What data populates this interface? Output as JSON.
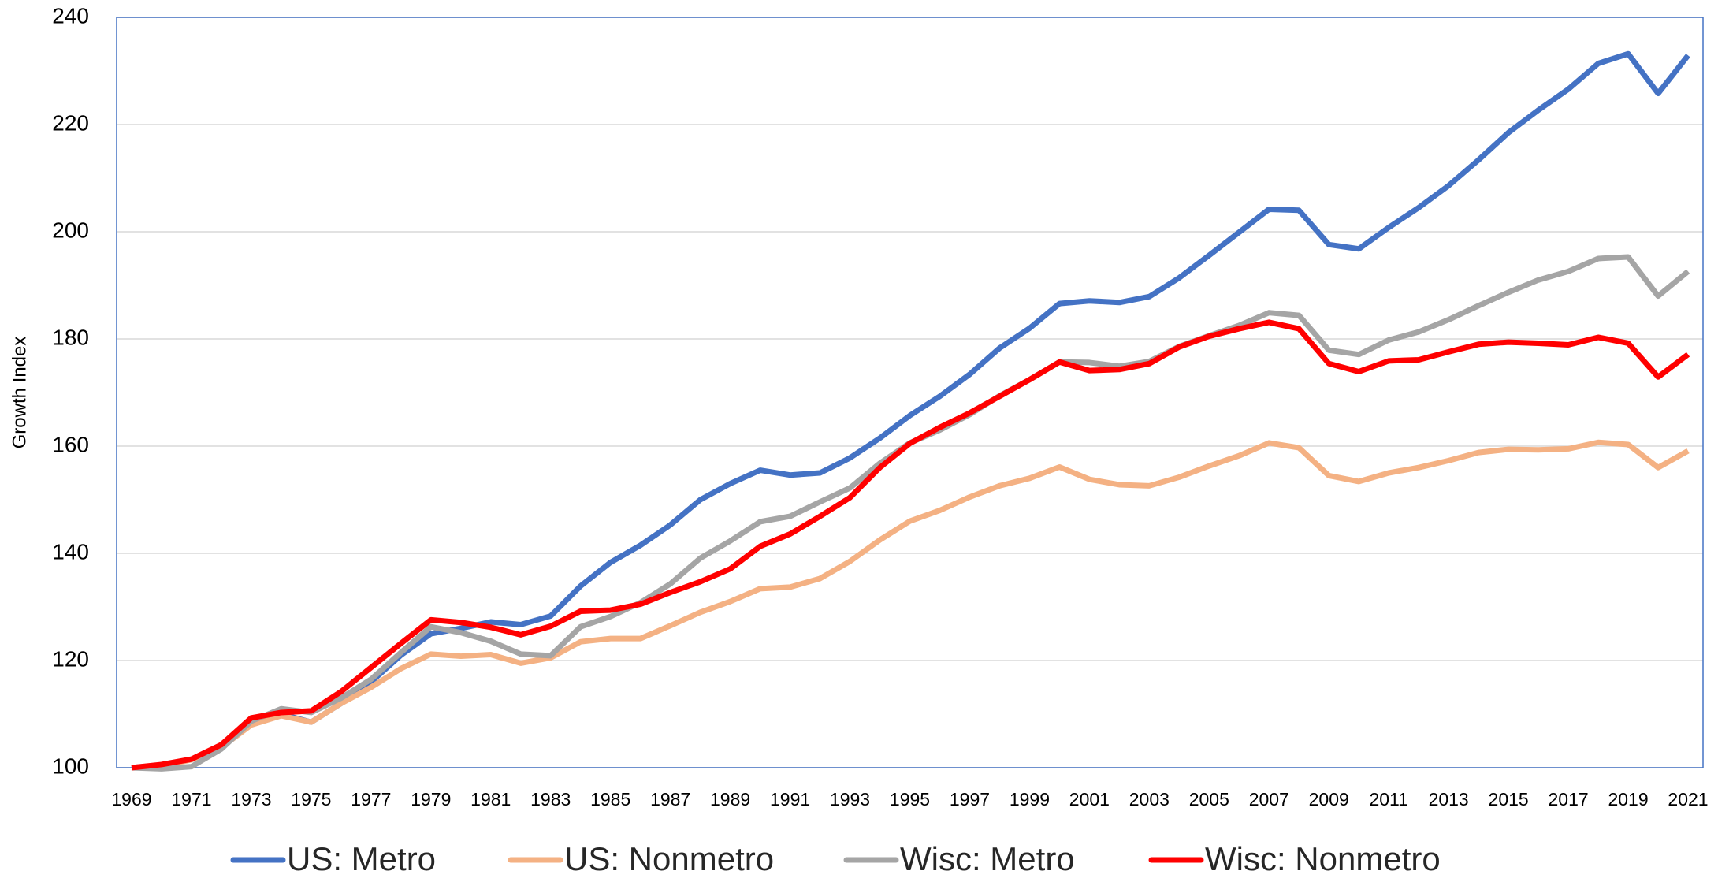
{
  "chart_data": {
    "type": "line",
    "y_label": "Growth Index",
    "x": [
      1969,
      1970,
      1971,
      1972,
      1973,
      1974,
      1975,
      1976,
      1977,
      1978,
      1979,
      1980,
      1981,
      1982,
      1983,
      1984,
      1985,
      1986,
      1987,
      1988,
      1989,
      1990,
      1991,
      1992,
      1993,
      1994,
      1995,
      1996,
      1997,
      1998,
      1999,
      2000,
      2001,
      2002,
      2003,
      2004,
      2005,
      2006,
      2007,
      2008,
      2009,
      2010,
      2011,
      2012,
      2013,
      2014,
      2015,
      2016,
      2017,
      2018,
      2019,
      2020,
      2021
    ],
    "xlim": [
      1968.5,
      2021.5
    ],
    "xticks": [
      1969,
      1971,
      1973,
      1975,
      1977,
      1979,
      1981,
      1983,
      1985,
      1987,
      1989,
      1991,
      1993,
      1995,
      1997,
      1999,
      2001,
      2003,
      2005,
      2007,
      2009,
      2011,
      2013,
      2015,
      2017,
      2019,
      2021
    ],
    "ylim": [
      100,
      240
    ],
    "yticks": [
      100,
      120,
      140,
      160,
      180,
      200,
      220,
      240
    ],
    "grid": true,
    "series": [
      {
        "name": "US: Metro",
        "color": "#4472c4",
        "values": [
          100,
          100.5,
          101.5,
          104,
          109,
          110,
          108.5,
          112,
          116,
          121,
          125,
          126,
          127.2,
          126.7,
          128.3,
          133.9,
          138.3,
          141.5,
          145.3,
          150,
          153,
          155.5,
          154.6,
          155,
          157.8,
          161.5,
          165.7,
          169.3,
          173.4,
          178.3,
          182,
          186.6,
          187.1,
          186.8,
          187.9,
          191.4,
          195.6,
          199.9,
          204.2,
          204,
          197.6,
          196.8,
          200.8,
          204.5,
          208.6,
          213.4,
          218.5,
          222.7,
          226.6,
          231.4,
          233.2,
          225.8,
          232.9
        ]
      },
      {
        "name": "US: Nonmetro",
        "color": "#f4b183",
        "values": [
          100,
          100.3,
          101.5,
          103.8,
          108,
          109.7,
          108.5,
          112,
          115,
          118.5,
          121.2,
          120.8,
          121.1,
          119.5,
          120.5,
          123.5,
          124.1,
          124.1,
          126.5,
          129,
          131,
          133.4,
          133.7,
          135.3,
          138.5,
          142.5,
          146,
          148,
          150.5,
          152.6,
          154,
          156.1,
          153.8,
          152.8,
          152.6,
          154.2,
          156.3,
          158.2,
          160.6,
          159.7,
          154.5,
          153.4,
          155,
          156,
          157.3,
          158.8,
          159.4,
          159.3,
          159.5,
          160.7,
          160.3,
          156,
          159.1
        ]
      },
      {
        "name": "Wisc: Metro",
        "color": "#a5a5a5",
        "values": [
          100,
          99.8,
          100.2,
          103.5,
          108.7,
          111,
          110.3,
          113,
          116.5,
          121.5,
          126.3,
          125.2,
          123.6,
          121.2,
          120.9,
          126.3,
          128.2,
          130.8,
          134.3,
          139.1,
          142.3,
          145.9,
          146.9,
          149.6,
          152.2,
          156.8,
          160.6,
          163,
          165.9,
          169.4,
          172.4,
          175.7,
          175.6,
          174.9,
          175.8,
          178.6,
          180.6,
          182.5,
          184.9,
          184.4,
          177.9,
          177.1,
          179.8,
          181.3,
          183.6,
          186.2,
          188.7,
          191,
          192.6,
          195,
          195.3,
          188,
          192.6
        ]
      },
      {
        "name": "Wisc: Nonmetro",
        "color": "#ff0000",
        "values": [
          100,
          100.6,
          101.6,
          104.3,
          109.3,
          110.3,
          110.6,
          114.2,
          118.7,
          123.2,
          127.6,
          127.1,
          126.2,
          124.8,
          126.4,
          129.2,
          129.4,
          130.5,
          132.7,
          134.7,
          137.1,
          141.3,
          143.6,
          146.9,
          150.4,
          156,
          160.5,
          163.5,
          166.2,
          169.3,
          172.4,
          175.7,
          174.1,
          174.3,
          175.4,
          178.5,
          180.5,
          181.9,
          183.1,
          181.9,
          175.4,
          173.9,
          175.9,
          176.1,
          177.6,
          179,
          179.4,
          179.2,
          178.9,
          180.3,
          179.2,
          172.9,
          177.1
        ]
      }
    ]
  }
}
